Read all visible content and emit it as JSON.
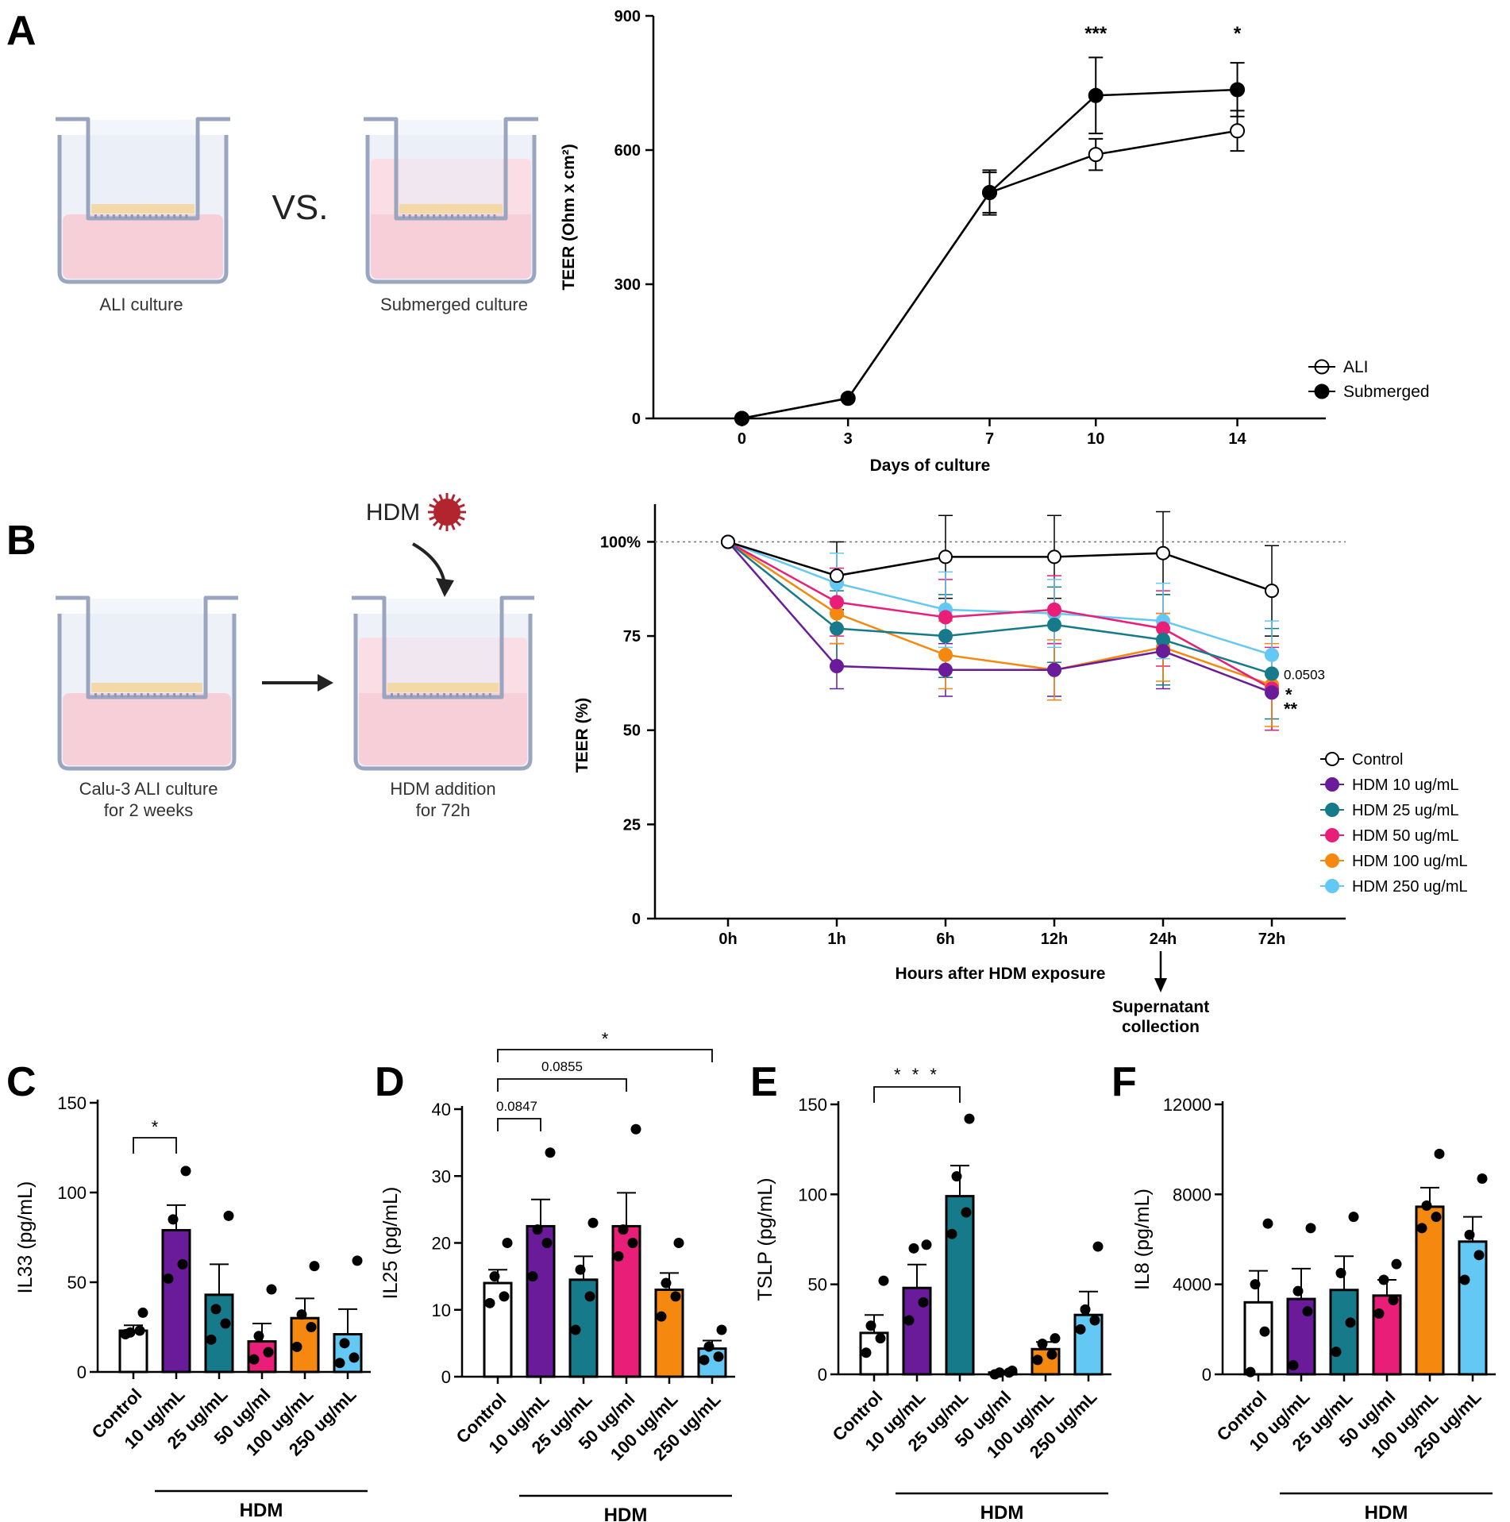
{
  "panel_letters": {
    "a": "A",
    "b": "B",
    "c": "C",
    "d": "D",
    "e": "E",
    "f": "F"
  },
  "colors": {
    "control": "#ffffff",
    "hdm10": "#6a1b9a",
    "hdm25": "#167a8a",
    "hdm50": "#e91e78",
    "hdm100": "#f5880f",
    "hdm250": "#64c8f4",
    "well": "#9aa6c0",
    "medium": "#f8c9d4",
    "cells": "#f4d9a8",
    "hdm_particle": "#b3252e"
  },
  "illustration_a": {
    "left_caption": "ALI culture",
    "right_caption": "Submerged culture",
    "vs": "VS."
  },
  "illustration_b": {
    "left_caption_1": "Calu-3 ALI culture",
    "left_caption_2": "for 2 weeks",
    "right_caption_1": "HDM addition",
    "right_caption_2": "for 72h",
    "hdm_label": "HDM"
  },
  "chart_data": [
    {
      "id": "A",
      "type": "line",
      "xlabel": "Days of culture",
      "ylabel": "TEER (Ohm x cm²)",
      "x": [
        0,
        3,
        7,
        10,
        14
      ],
      "xticks": [
        "0",
        "3",
        "7",
        "10",
        "14"
      ],
      "ylim": [
        0,
        900
      ],
      "yticks": [
        "0",
        "300",
        "600",
        "900"
      ],
      "series": [
        {
          "name": "ALI",
          "fill": "open",
          "values": [
            0,
            45,
            505,
            590,
            643
          ],
          "err": [
            0,
            0,
            50,
            35,
            45
          ]
        },
        {
          "name": "Submerged",
          "fill": "filled",
          "values": [
            0,
            45,
            505,
            722,
            735
          ],
          "err": [
            0,
            0,
            45,
            85,
            60
          ]
        }
      ],
      "significance": [
        {
          "x": 10,
          "label": "***"
        },
        {
          "x": 14,
          "label": "*"
        }
      ],
      "legend": "bottom-right"
    },
    {
      "id": "B",
      "type": "line",
      "xlabel": "Hours after HDM exposure",
      "ylabel": "TEER (%)",
      "categories": [
        "0h",
        "1h",
        "6h",
        "12h",
        "24h",
        "72h"
      ],
      "ylim": [
        0,
        110
      ],
      "yticks": [
        "0",
        "25",
        "50",
        "75",
        "100%"
      ],
      "reference_line": 100,
      "series": [
        {
          "name": "Control",
          "values": [
            100,
            91,
            96,
            96,
            97,
            87
          ],
          "err": [
            0,
            9,
            11,
            11,
            11,
            12
          ]
        },
        {
          "name": "HDM 10 ug/mL",
          "values": [
            100,
            67,
            66,
            66,
            71,
            60
          ],
          "err": [
            0,
            6,
            7,
            7,
            10,
            10
          ]
        },
        {
          "name": "HDM 25 ug/mL",
          "values": [
            100,
            77,
            75,
            78,
            74,
            65
          ],
          "err": [
            0,
            10,
            11,
            10,
            12,
            12
          ]
        },
        {
          "name": "HDM 50 ug/mL",
          "values": [
            100,
            84,
            80,
            82,
            77,
            61
          ],
          "err": [
            0,
            9,
            10,
            9,
            10,
            11
          ]
        },
        {
          "name": "HDM 100 ug/mL",
          "values": [
            100,
            81,
            70,
            66,
            72,
            62
          ],
          "err": [
            0,
            8,
            9,
            8,
            9,
            11
          ]
        },
        {
          "name": "HDM 250 ug/mL",
          "values": [
            100,
            89,
            82,
            81,
            79,
            70
          ],
          "err": [
            0,
            8,
            10,
            9,
            10,
            9
          ]
        }
      ],
      "annotations": [
        {
          "label": "0.0503"
        },
        {
          "label": "*"
        },
        {
          "label": "**"
        }
      ],
      "arrow_label_1": "Supernatant",
      "arrow_label_2": "collection",
      "legend": "right"
    },
    {
      "id": "C",
      "type": "bar",
      "ylabel": "IL33 (pg/mL)",
      "categories": [
        "Control",
        "10 ug/mL",
        "25 ug/mL",
        "50 ug/ml",
        "100 ug/mL",
        "250 ug/mL"
      ],
      "values": [
        23,
        79,
        43,
        17,
        30,
        21
      ],
      "err": [
        3,
        14,
        17,
        10,
        11,
        14
      ],
      "points": [
        [
          21,
          23,
          22,
          33
        ],
        [
          52,
          60,
          85,
          112
        ],
        [
          18,
          27,
          35,
          87
        ],
        [
          7,
          11,
          20,
          46
        ],
        [
          14,
          25,
          32,
          59
        ],
        [
          5,
          8,
          16,
          62
        ]
      ],
      "ylim": [
        0,
        150
      ],
      "yticks": [
        "0",
        "50",
        "100",
        "150"
      ],
      "brackets": [
        {
          "from": 0,
          "to": 1,
          "label": "*"
        }
      ],
      "group_label": "HDM"
    },
    {
      "id": "D",
      "type": "bar",
      "ylabel": "IL25 (pg/mL)",
      "categories": [
        "Control",
        "10 ug/mL",
        "25 ug/mL",
        "50 ug/ml",
        "100 ug/mL",
        "250 ug/mL"
      ],
      "values": [
        14,
        22.5,
        14.5,
        22.5,
        13,
        4.2
      ],
      "err": [
        2,
        4,
        3.5,
        5,
        2.5,
        1.2
      ],
      "points": [
        [
          11,
          12,
          15,
          20
        ],
        [
          15,
          20,
          22,
          33.5
        ],
        [
          7,
          12,
          16,
          23
        ],
        [
          18,
          20,
          22,
          37
        ],
        [
          9,
          12,
          14,
          20
        ],
        [
          2.5,
          3,
          4.5,
          7
        ]
      ],
      "ylim": [
        0,
        40
      ],
      "yticks": [
        "0",
        "10",
        "20",
        "30",
        "40"
      ],
      "brackets": [
        {
          "from": 0,
          "to": 1,
          "label": "0.0847"
        },
        {
          "from": 0,
          "to": 3,
          "label": "0.0855"
        },
        {
          "from": 0,
          "to": 5,
          "label": "*"
        }
      ],
      "group_label": "HDM"
    },
    {
      "id": "E",
      "type": "bar",
      "ylabel": "TSLP (pg/mL)",
      "categories": [
        "Control",
        "10 ug/mL",
        "25 ug/mL",
        "50 ug/ml",
        "100 ug/mL",
        "250 ug/mL"
      ],
      "values": [
        23,
        48,
        99,
        1,
        14,
        33
      ],
      "err": [
        10,
        13,
        17,
        1,
        4,
        13
      ],
      "points": [
        [
          12,
          20,
          27,
          52
        ],
        [
          30,
          40,
          70,
          72
        ],
        [
          78,
          90,
          110,
          142
        ],
        [
          0,
          1,
          1,
          2
        ],
        [
          8,
          11,
          17,
          20
        ],
        [
          25,
          30,
          36,
          71
        ]
      ],
      "ylim": [
        0,
        150
      ],
      "yticks": [
        "0",
        "50",
        "100",
        "150"
      ],
      "brackets": [
        {
          "from": 0,
          "to": 2,
          "label": "* * *"
        }
      ],
      "group_label": "HDM"
    },
    {
      "id": "F",
      "type": "bar",
      "ylabel": "IL8 (pg/mL)",
      "categories": [
        "Control",
        "10 ug/mL",
        "25 ug/mL",
        "50 ug/ml",
        "100 ug/mL",
        "250 ug/mL"
      ],
      "values": [
        3200,
        3350,
        3750,
        3500,
        7450,
        5900
      ],
      "err": [
        1400,
        1350,
        1500,
        700,
        850,
        1100
      ],
      "points": [
        [
          100,
          1900,
          4000,
          6700
        ],
        [
          400,
          2800,
          3700,
          6500
        ],
        [
          1000,
          2300,
          4500,
          7000
        ],
        [
          2700,
          3300,
          4200,
          4900
        ],
        [
          6500,
          7000,
          7500,
          9800
        ],
        [
          4200,
          5300,
          6200,
          8700
        ]
      ],
      "ylim": [
        0,
        12000
      ],
      "yticks": [
        "0",
        "4000",
        "8000",
        "12000"
      ],
      "brackets": [],
      "group_label": "HDM"
    }
  ]
}
